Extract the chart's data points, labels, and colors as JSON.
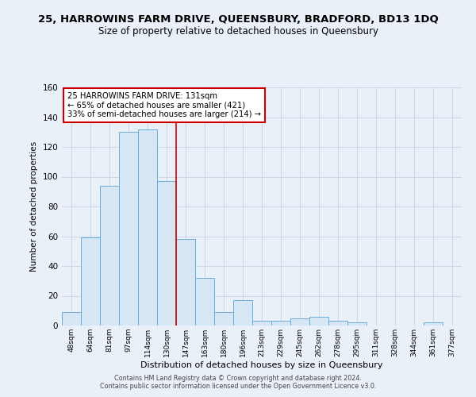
{
  "title": "25, HARROWINS FARM DRIVE, QUEENSBURY, BRADFORD, BD13 1DQ",
  "subtitle": "Size of property relative to detached houses in Queensbury",
  "xlabel": "Distribution of detached houses by size in Queensbury",
  "ylabel": "Number of detached properties",
  "bar_labels": [
    "48sqm",
    "64sqm",
    "81sqm",
    "97sqm",
    "114sqm",
    "130sqm",
    "147sqm",
    "163sqm",
    "180sqm",
    "196sqm",
    "213sqm",
    "229sqm",
    "245sqm",
    "262sqm",
    "278sqm",
    "295sqm",
    "311sqm",
    "328sqm",
    "344sqm",
    "361sqm",
    "377sqm"
  ],
  "bar_values": [
    9,
    59,
    94,
    130,
    132,
    97,
    58,
    32,
    9,
    17,
    3,
    3,
    5,
    6,
    3,
    2,
    0,
    0,
    0,
    2,
    0
  ],
  "bar_color": "#d6e6f5",
  "bar_edge_color": "#6aaed6",
  "reference_line_x": 5.5,
  "annotation_line1": "25 HARROWINS FARM DRIVE: 131sqm",
  "annotation_line2": "← 65% of detached houses are smaller (421)",
  "annotation_line3": "33% of semi-detached houses are larger (214) →",
  "annotation_box_color": "white",
  "annotation_box_edge_color": "#cc0000",
  "ylim": [
    0,
    160
  ],
  "yticks": [
    0,
    20,
    40,
    60,
    80,
    100,
    120,
    140,
    160
  ],
  "footer_line1": "Contains HM Land Registry data © Crown copyright and database right 2024.",
  "footer_line2": "Contains public sector information licensed under the Open Government Licence v3.0.",
  "bg_color": "#eaf0f8",
  "grid_color": "#c8d8e8",
  "title_fontsize": 9.5,
  "subtitle_fontsize": 8.5
}
